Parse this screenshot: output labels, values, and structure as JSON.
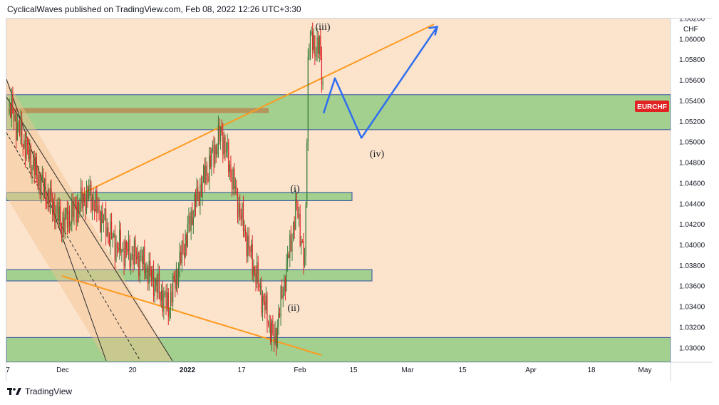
{
  "header": {
    "text": "CyclicalWaves published on TradingView.com, Feb 08, 2022 12:26 UTC+3:30"
  },
  "footer": {
    "brand": "TradingView"
  },
  "colors": {
    "background": "#fbe3cc",
    "zone_fill": "#a3cf8f",
    "zone_border": "#2e4fa3",
    "trendline": "#ff9a1f",
    "projection": "#2f6ef0",
    "channel": "#2b2b2b",
    "candle_up": "#3a7d3a",
    "candle_down": "#e02424",
    "symbol_badge": "#e02424"
  },
  "chart_data": {
    "type": "line",
    "symbol": "EURCHF",
    "currency": "CHF",
    "y_axis": {
      "ticks": [
        "1.06200",
        "1.06000",
        "1.05800",
        "1.05600",
        "1.05400",
        "1.05200",
        "1.05000",
        "1.04800",
        "1.04600",
        "1.04400",
        "1.04200",
        "1.04000",
        "1.03800",
        "1.03600",
        "1.03400",
        "1.03200",
        "1.03000"
      ],
      "range": [
        1.0286,
        1.062
      ],
      "position": "right"
    },
    "x_axis": {
      "ticks": [
        "7",
        "Dec",
        "20",
        "2022",
        "17",
        "Feb",
        "15",
        "Mar",
        "15",
        "Apr",
        "18",
        "May"
      ]
    },
    "price_series": {
      "name": "",
      "x": [
        "Nov 17",
        "Nov 24",
        "Dec 1",
        "Dec 8",
        "Dec 15",
        "Dec 22",
        "Dec 29",
        "Jan 5",
        "Jan 12",
        "Jan 19",
        "Jan 26",
        "Feb 1",
        "Feb 3",
        "Feb 4",
        "Feb 7",
        "Feb 8"
      ],
      "values": [
        1.0535,
        1.047,
        1.042,
        1.045,
        1.04,
        1.0385,
        1.034,
        1.044,
        1.051,
        1.04,
        1.0305,
        1.044,
        1.0375,
        1.06,
        1.059,
        1.0545
      ]
    },
    "zones": [
      {
        "from": 1.0512,
        "to": 1.0546
      },
      {
        "from": 1.0443,
        "to": 1.0451
      },
      {
        "from": 1.0365,
        "to": 1.0376
      },
      {
        "from": 1.0286,
        "to": 1.031
      }
    ],
    "projection": {
      "x": [
        "Feb 8",
        "Feb 11",
        "Feb 18",
        "Mar 10"
      ],
      "values": [
        1.0528,
        1.0562,
        1.0504,
        1.0612
      ]
    },
    "wave_labels": [
      "(i)",
      "(ii)",
      "(iii)",
      "(iv)"
    ]
  }
}
